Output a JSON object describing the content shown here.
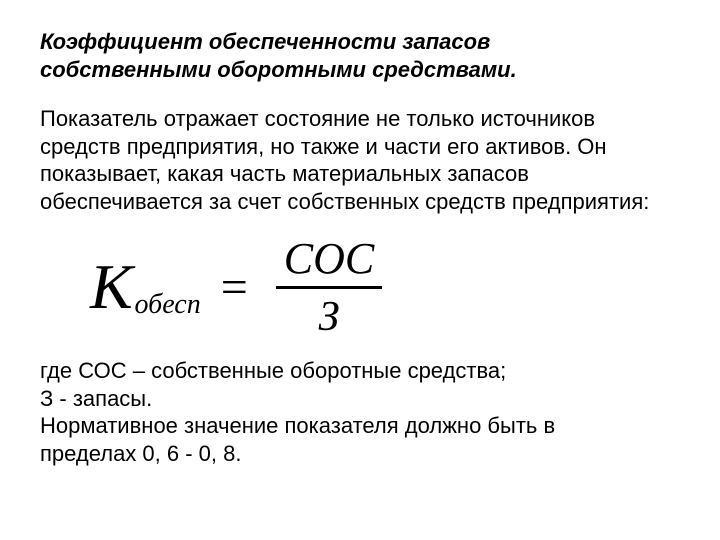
{
  "title": {
    "line1": "Коэффициент обеспеченности запасов",
    "line2": "собственными оборотными средствами."
  },
  "body": "Показатель отражает состояние не только источников средств предприятия, но также и части его активов. Он показывает, какая часть материальных запасов обеспечивается за счет собственных средств предприятия:",
  "formula": {
    "lhs_sym": "К",
    "lhs_sub": "обесп",
    "eq": "=",
    "numerator": "СОС",
    "denominator": "З"
  },
  "legend": {
    "l1": "где СОС – собственные оборотные средства;",
    "l2": "З - запасы.",
    "l3": "Нормативное значение показателя должно быть в",
    "l4": "пределах 0, 6 - 0, 8."
  },
  "style": {
    "background_color": "#ffffff",
    "text_color": "#000000",
    "title_fontsize": 22,
    "body_fontsize": 22,
    "formula_main_fontsize": 64,
    "formula_sub_fontsize": 28,
    "frac_fontsize": 44
  }
}
